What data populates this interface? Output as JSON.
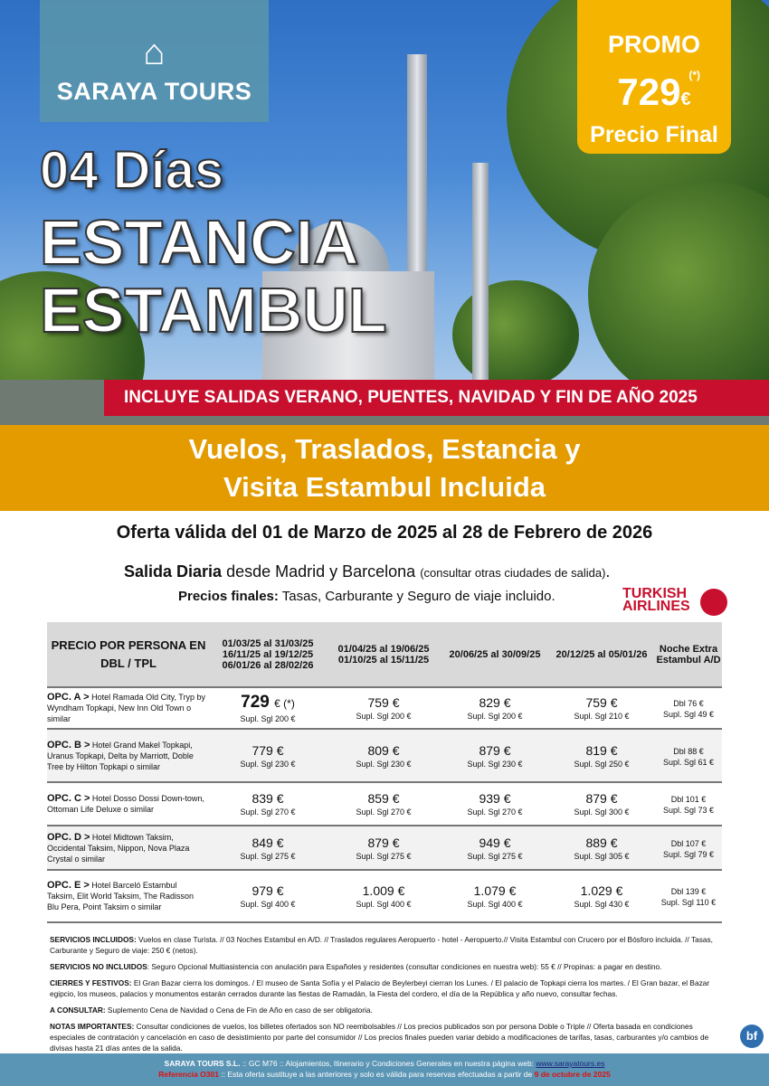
{
  "brand": {
    "name": "SARAYA TOURS",
    "accent": "#e39b00",
    "red": "#c8102e",
    "teal": "#5b95b5"
  },
  "promo": {
    "label": "PROMO",
    "asterisk": "(*)",
    "price": "729",
    "currency": "€",
    "final": "Precio Final"
  },
  "title": {
    "line1": "04 Días",
    "line2": "ESTANCIA",
    "line3": "ESTAMBUL"
  },
  "banner": "INCLUYE SALIDAS VERANO, PUENTES, NAVIDAD Y FIN DE AÑO 2025",
  "band": {
    "line1": "Vuelos, Traslados, Estancia y",
    "line2": "Visita Estambul Incluida"
  },
  "offer": "Oferta válida del 01 de Marzo de 2025 al 28 de Febrero de 2026",
  "salida": {
    "bold": "Salida Diaria",
    "text": " desde Madrid y Barcelona ",
    "small": "(consultar otras ciudades de salida)",
    "end": "."
  },
  "precios": {
    "bold": "Precios finales:",
    "text": " Tasas, Carburante y Seguro de viaje incluido."
  },
  "airline": {
    "line1": "TURKISH",
    "line2": "AIRLINES"
  },
  "table": {
    "headers": [
      "PRECIO POR PERSONA EN DBL / TPL",
      "01/03/25 al 31/03/25 16/11/25 al 19/12/25 06/01/26 al 28/02/26",
      "01/04/25 al 19/06/25 01/10/25 al 15/11/25",
      "20/06/25 al 30/09/25",
      "20/12/25 al 05/01/26",
      "Noche Extra Estambul A/D"
    ],
    "rows": [
      {
        "opt": "OPC. A >",
        "hotels": "Hotel Ramada Old City, Tryp by Wyndham Topkapi, New Inn Old Town o similar",
        "prices": [
          "729",
          "759 €",
          "829 €",
          "759 €"
        ],
        "first_suffix": "€ (*)",
        "supl": [
          "Supl. Sgl 200 €",
          "Supl. Sgl 200 €",
          "Supl. Sgl 200 €",
          "Supl. Sgl 210 €"
        ],
        "extra_dbl": "Dbl 76 €",
        "extra_sgl": "Supl. Sgl 49 €"
      },
      {
        "opt": "OPC. B >",
        "hotels": "Hotel Grand Makel Topkapi, Uranus Topkapi, Delta by Marriott, Doble Tree by Hilton Topkapi o similar",
        "prices": [
          "779 €",
          "809 €",
          "879 €",
          "819 €"
        ],
        "supl": [
          "Supl. Sgl 230 €",
          "Supl. Sgl 230 €",
          "Supl. Sgl 230 €",
          "Supl. Sgl 250 €"
        ],
        "extra_dbl": "Dbl 88 €",
        "extra_sgl": "Supl. Sgl 61 €"
      },
      {
        "opt": "OPC. C >",
        "hotels": "Hotel Dosso Dossi Down-town, Ottoman Life Deluxe o similar",
        "prices": [
          "839 €",
          "859 €",
          "939 €",
          "879 €"
        ],
        "supl": [
          "Supl. Sgl 270 €",
          "Supl. Sgl 270 €",
          "Supl. Sgl 270 €",
          "Supl. Sgl 300 €"
        ],
        "extra_dbl": "Dbl 101 €",
        "extra_sgl": "Supl. Sgl 73 €"
      },
      {
        "opt": "OPC. D >",
        "hotels": "Hotel Midtown Taksim, Occidental Taksim, Nippon, Nova Plaza Crystal o similar",
        "prices": [
          "849 €",
          "879 €",
          "949 €",
          "889 €"
        ],
        "supl": [
          "Supl. Sgl 275 €",
          "Supl. Sgl 275 €",
          "Supl. Sgl 275 €",
          "Supl. Sgl 305 €"
        ],
        "extra_dbl": "Dbl 107 €",
        "extra_sgl": "Supl. Sgl 79 €"
      },
      {
        "opt": "OPC. E >",
        "hotels": "Hotel Barceló Estambul Taksim, Elit World Taksim, The Radisson Blu Pera, Point Taksim o similar",
        "prices": [
          "979 €",
          "1.009 €",
          "1.079 €",
          "1.029 €"
        ],
        "supl": [
          "Supl. Sgl 400 €",
          "Supl. Sgl 400 €",
          "Supl. Sgl 400 €",
          "Supl. Sgl 430 €"
        ],
        "extra_dbl": "Dbl 139 €",
        "extra_sgl": "Supl. Sgl 110 €"
      }
    ]
  },
  "notes": [
    {
      "label": "SERVICIOS INCLUIDOS:",
      "text": " Vuelos en clase Turista. // 03 Noches Estambul en A/D. // Traslados regulares Aeropuerto - hotel - Aeropuerto.// Visita Estambul con Crucero por el Bósforo incluida. // Tasas, Carburante y Seguro de viaje: 250 € (netos)."
    },
    {
      "label": "SERVICIOS NO INCLUIDOS",
      "text": ": Seguro Opcional Multiasistencia con anulación para Españoles y residentes (consultar condiciones en nuestra web): 55 € // Propinas: a pagar en destino."
    },
    {
      "label": "CIERRES Y FESTIVOS:",
      "text": " El Gran Bazar cierra los domingos. / El museo de Santa Sofía y el Palacio de Beylerbeyi cierran los Lunes. / El palacio de Topkapi cierra los martes. / El Gran bazar, el Bazar egipcio, los museos, palacios y monumentos estarán cerrados durante las fiestas de Ramadán, la Fiesta del cordero, el día de la República y año nuevo, consultar fechas."
    },
    {
      "label": "A CONSULTAR:",
      "text": " Suplemento Cena de Navidad o Cena de Fin de Año en caso de ser obligatoria."
    },
    {
      "label": "NOTAS IMPORTANTES:",
      "text": " Consultar condiciones de vuelos, los billetes ofertados son NO reembolsables // Los precios publicados son por persona Doble o Triple // Oferta basada en condiciones especiales de contratación y cancelación en caso de desistimiento por parte del consumidor // Los precios finales pueden variar debido a modificaciones de tarifas, tasas, carburantes y/o cambios de divisas hasta 21 días antes de la salida."
    }
  ],
  "bf_logo": "bf",
  "footer": {
    "company": "SARAYA TOURS S.L.",
    "text1": " :: GC M76 ::  Alojamientos, Itinerario y Condiciones Generales en nuestra página web:  ",
    "url": "www.sarayatours.es",
    "ref": "Referencia O301",
    "text2": " :: Esta oferta sustituye a las anteriores y solo es válida para reservas efectuadas a partir de ",
    "date": "9 de octubre de 2025"
  }
}
